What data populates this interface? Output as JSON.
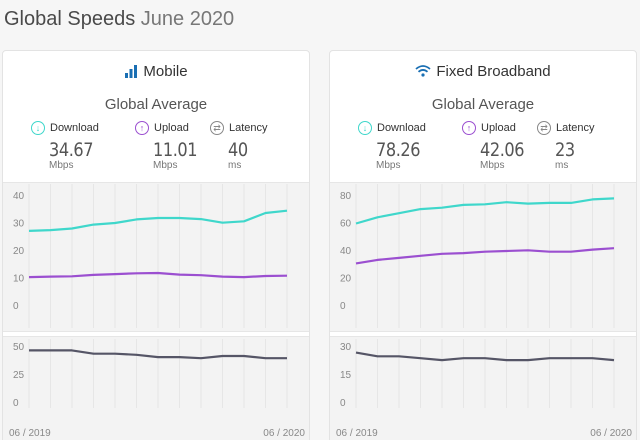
{
  "header": {
    "title": "Global Speeds",
    "subtitle": "June 2020"
  },
  "colors": {
    "download": "#3fd7cb",
    "upload": "#9b4fd0",
    "latency": "#555566"
  },
  "panels": [
    {
      "id": "mobile",
      "title": "Mobile",
      "icon": "signal-bars-icon",
      "avg_title": "Global Average",
      "download": {
        "label": "Download",
        "value": "34.67",
        "unit": "Mbps"
      },
      "upload": {
        "label": "Upload",
        "value": "11.01",
        "unit": "Mbps"
      },
      "latency": {
        "label": "Latency",
        "value": "40",
        "unit": "ms"
      }
    },
    {
      "id": "fixed",
      "title": "Fixed Broadband",
      "icon": "wifi-icon",
      "avg_title": "Global Average",
      "download": {
        "label": "Download",
        "value": "78.26",
        "unit": "Mbps"
      },
      "upload": {
        "label": "Upload",
        "value": "42.06",
        "unit": "Mbps"
      },
      "latency": {
        "label": "Latency",
        "value": "23",
        "unit": "ms"
      }
    }
  ],
  "chart_data": [
    {
      "type": "line",
      "panel": "Mobile",
      "x": [
        "06 / 2019",
        "07 / 2019",
        "08 / 2019",
        "09 / 2019",
        "10 / 2019",
        "11 / 2019",
        "12 / 2019",
        "01 / 2020",
        "02 / 2020",
        "03 / 2020",
        "04 / 2020",
        "05 / 2020",
        "06 / 2020"
      ],
      "x_tick_labels": [
        "06 / 2019",
        "06 / 2020"
      ],
      "speed_yticks": [
        0,
        10,
        20,
        30,
        40
      ],
      "speed_ylim": [
        0,
        40
      ],
      "latency_yticks": [
        0,
        25,
        50
      ],
      "latency_ylim": [
        0,
        50
      ],
      "series": [
        {
          "metric": "download",
          "values": [
            27.3,
            27.6,
            28.2,
            29.6,
            30.2,
            31.5,
            32.0,
            32.0,
            31.6,
            30.3,
            30.8,
            33.8,
            34.67
          ]
        },
        {
          "metric": "upload",
          "values": [
            10.5,
            10.7,
            10.8,
            11.3,
            11.6,
            11.9,
            12.0,
            11.4,
            11.2,
            10.7,
            10.5,
            10.9,
            11.01
          ]
        },
        {
          "metric": "latency",
          "values": [
            47,
            47,
            47,
            44,
            44,
            43,
            41,
            41,
            40,
            42,
            42,
            40,
            40
          ]
        }
      ]
    },
    {
      "type": "line",
      "panel": "Fixed Broadband",
      "x": [
        "06 / 2019",
        "07 / 2019",
        "08 / 2019",
        "09 / 2019",
        "10 / 2019",
        "11 / 2019",
        "12 / 2019",
        "01 / 2020",
        "02 / 2020",
        "03 / 2020",
        "04 / 2020",
        "05 / 2020",
        "06 / 2020"
      ],
      "x_tick_labels": [
        "06 / 2019",
        "06 / 2020"
      ],
      "speed_yticks": [
        0,
        20,
        40,
        60,
        80
      ],
      "speed_ylim": [
        0,
        80
      ],
      "latency_yticks": [
        0,
        15,
        30
      ],
      "latency_ylim": [
        0,
        30
      ],
      "series": [
        {
          "metric": "download",
          "values": [
            60,
            64.5,
            67.5,
            70.5,
            71.5,
            73.5,
            74,
            75.5,
            74.5,
            75,
            75,
            77.5,
            78.26
          ]
        },
        {
          "metric": "upload",
          "values": [
            31,
            33.5,
            35,
            36.5,
            38,
            38.5,
            39.5,
            40,
            40.5,
            39.5,
            39.5,
            41,
            42.06
          ]
        },
        {
          "metric": "latency",
          "values": [
            27,
            25,
            25,
            24,
            23,
            24,
            24,
            23,
            23,
            24,
            24,
            24,
            23
          ]
        }
      ]
    }
  ]
}
